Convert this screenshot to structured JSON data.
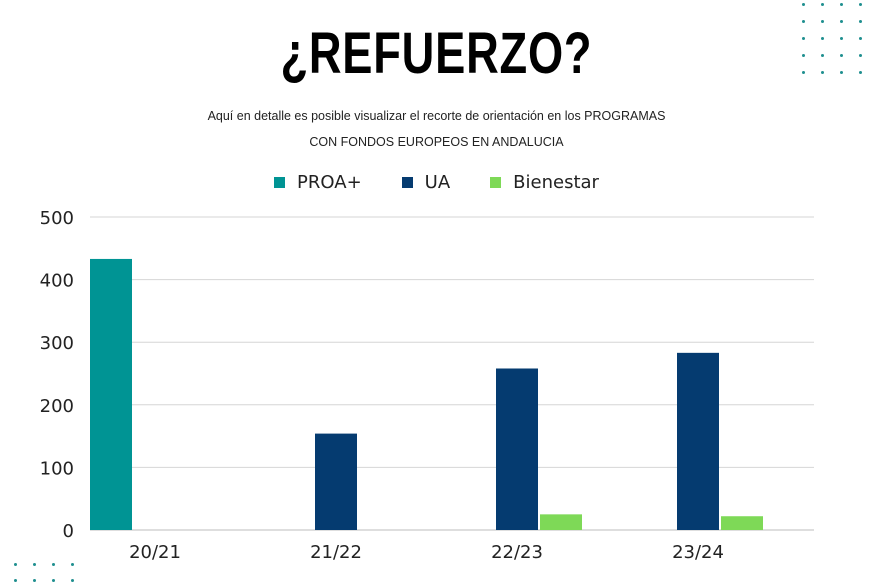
{
  "header": {
    "title": "¿REFUERZO?",
    "subtitle_line1": "Aquí en detalle es posible visualizar el recorte de orientación en los PROGRAMAS",
    "subtitle_line2": "CON FONDOS EUROPEOS EN ANDALUCIA"
  },
  "chart_data": {
    "type": "bar",
    "categories": [
      "20/21",
      "21/22",
      "22/23",
      "23/24"
    ],
    "series": [
      {
        "name": "PROA+",
        "color": "#009494",
        "values": [
          433,
          0,
          0,
          0
        ]
      },
      {
        "name": "UA",
        "color": "#053b70",
        "values": [
          0,
          154,
          258,
          283
        ]
      },
      {
        "name": "Bienestar",
        "color": "#7ed957",
        "values": [
          0,
          0,
          25,
          22
        ]
      }
    ],
    "ylim": [
      0,
      500
    ],
    "yticks": [
      "0",
      "100",
      "200",
      "300",
      "400",
      "500"
    ],
    "grid": true,
    "legend_position": "top-center",
    "title": "",
    "xlabel": "",
    "ylabel": ""
  },
  "decoration": {
    "dot_color": "#1f8f8f"
  }
}
